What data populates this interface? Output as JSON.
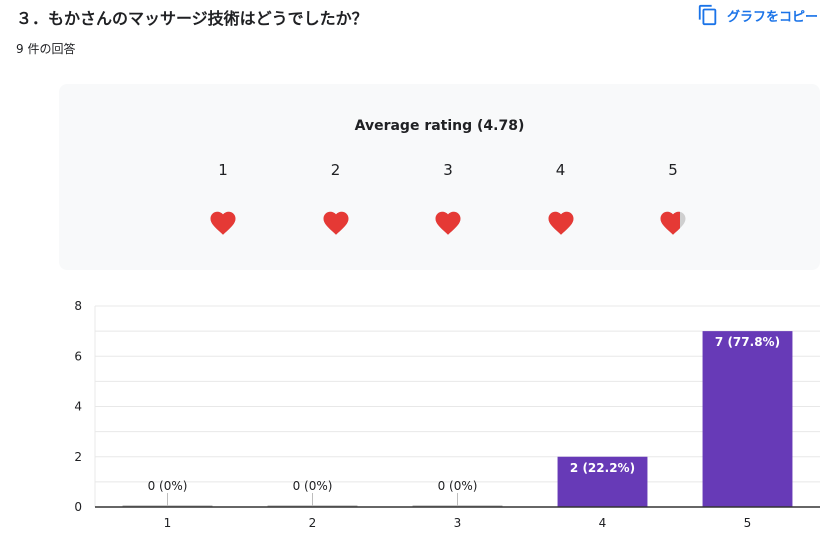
{
  "question": {
    "title": "３．もかさんのマッサージ技術はどうでしたか？",
    "response_count": "9 件の回答"
  },
  "copy_chart_label": "グラフをコピー",
  "rating": {
    "title": "Average rating (4.78)",
    "average": 4.78,
    "scale": [
      "1",
      "2",
      "3",
      "4",
      "5"
    ],
    "heart_color": "#e53935",
    "empty_color": "#cfcfcf"
  },
  "chart_data": {
    "type": "bar",
    "categories": [
      "1",
      "2",
      "3",
      "4",
      "5"
    ],
    "values": [
      0,
      0,
      0,
      2,
      7
    ],
    "data_labels": [
      "0 (0%)",
      "0 (0%)",
      "0 (0%)",
      "2 (22.2%)",
      "7 (77.8%)"
    ],
    "y_ticks": [
      "0",
      "2",
      "4",
      "6",
      "8"
    ],
    "ylim": [
      0,
      8
    ],
    "grid": true,
    "bar_color": "#673ab7",
    "grid_color": "#e8e8e8",
    "axis_color": "#333333",
    "label_color": "#202124"
  }
}
